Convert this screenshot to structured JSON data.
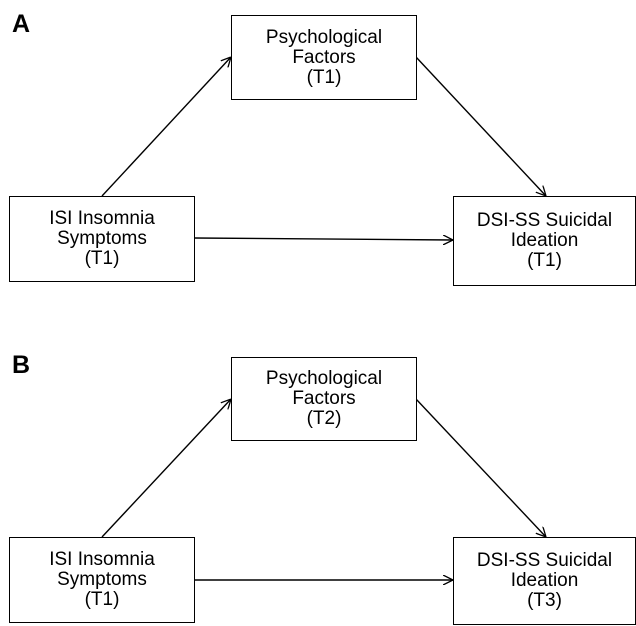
{
  "panels": [
    {
      "label": "A",
      "mediator": [
        "Psychological",
        "Factors",
        "(T1)"
      ],
      "predictor": [
        "ISI Insomnia",
        "Symptoms",
        "(T1)"
      ],
      "outcome": [
        "DSI-SS Suicidal",
        "Ideation",
        "(T1)"
      ]
    },
    {
      "label": "B",
      "mediator": [
        "Psychological",
        "Factors",
        "(T2)"
      ],
      "predictor": [
        "ISI Insomnia",
        "Symptoms",
        "(T1)"
      ],
      "outcome": [
        "DSI-SS Suicidal",
        "Ideation",
        "(T3)"
      ]
    }
  ]
}
